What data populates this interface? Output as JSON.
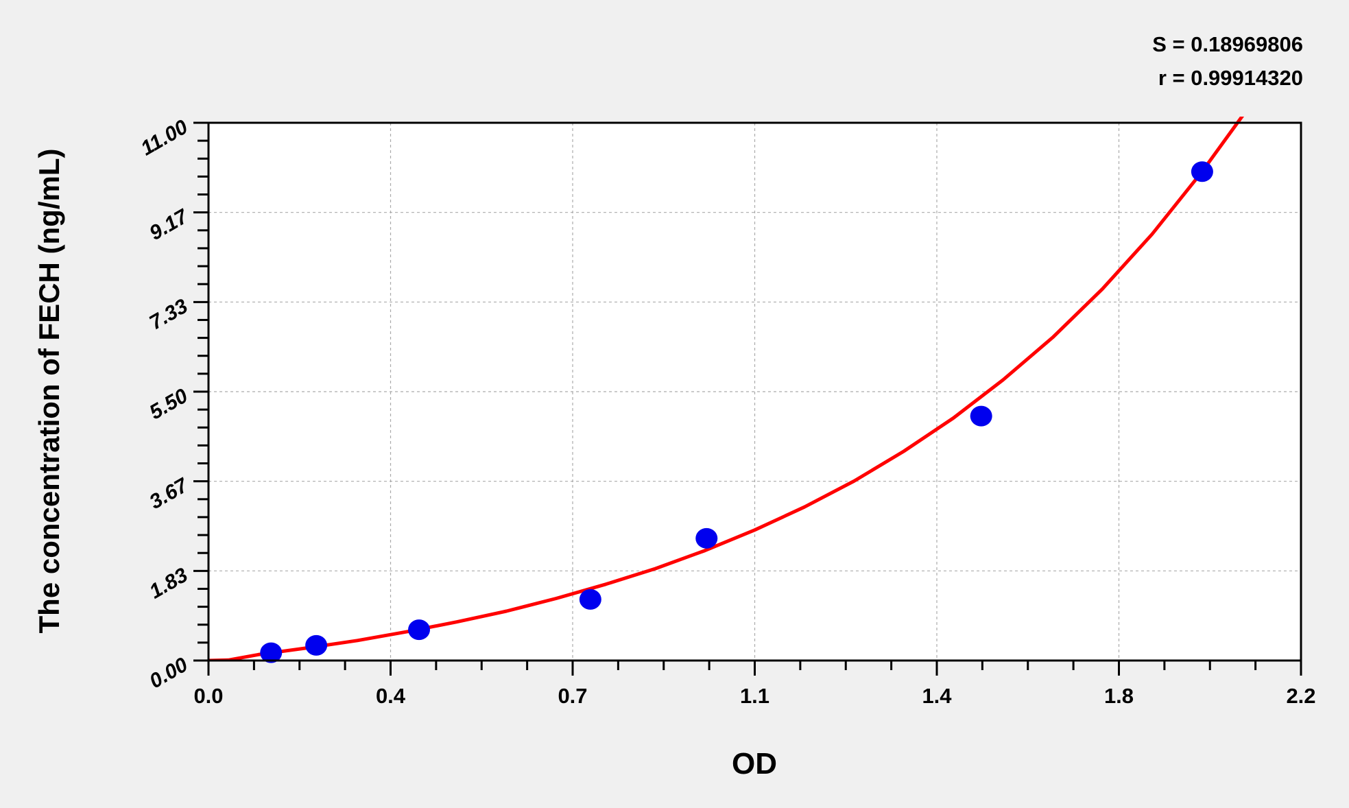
{
  "chart_data": {
    "type": "scatter",
    "title": "",
    "xlabel": "OD",
    "ylabel": "The concentration of FECH (ng/mL)",
    "xlim": [
      0,
      2.2
    ],
    "ylim": [
      0,
      11
    ],
    "x_ticks": [
      "0.0",
      "0.4",
      "0.7",
      "1.1",
      "1.4",
      "1.8",
      "2.2"
    ],
    "y_ticks": [
      "0.00",
      "1.83",
      "3.67",
      "5.50",
      "7.33",
      "9.17",
      "11.00"
    ],
    "grid": true,
    "stats": [
      "S = 0.18969806",
      "r = 0.99914320"
    ],
    "points": {
      "color": "#0000ee",
      "x": [
        0.126,
        0.217,
        0.424,
        0.769,
        1.003,
        1.556,
        2.001
      ],
      "y": [
        0.16,
        0.31,
        0.63,
        1.25,
        2.5,
        5.0,
        10.0
      ]
    },
    "fit_curve": {
      "color": "#ff0000",
      "x": [
        0,
        0.04,
        0.1,
        0.2,
        0.3,
        0.4,
        0.5,
        0.6,
        0.7,
        0.8,
        0.9,
        1.0,
        1.1,
        1.2,
        1.3,
        1.4,
        1.5,
        1.6,
        1.7,
        1.8,
        1.9,
        2.0,
        2.06
      ],
      "y": [
        0,
        0.01,
        0.12,
        0.26,
        0.41,
        0.59,
        0.79,
        1.01,
        1.27,
        1.56,
        1.88,
        2.25,
        2.67,
        3.14,
        3.67,
        4.28,
        4.96,
        5.74,
        6.61,
        7.6,
        8.72,
        9.99,
        10.83
      ]
    }
  }
}
